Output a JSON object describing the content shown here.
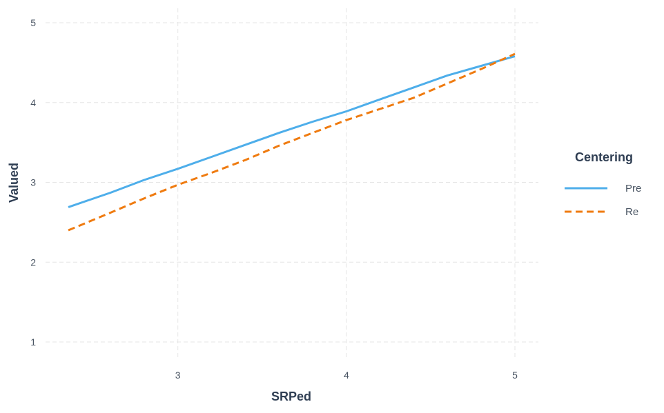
{
  "chart_data": {
    "type": "line",
    "title": "",
    "xlabel": "SRPed",
    "ylabel": "Valued",
    "xlim": [
      2.35,
      5.0
    ],
    "ylim": [
      1,
      5
    ],
    "x_ticks": [
      3,
      4,
      5
    ],
    "y_ticks": [
      1,
      2,
      3,
      4,
      5
    ],
    "grid": true,
    "legend": {
      "title": "Centering",
      "placement": "right"
    },
    "series": [
      {
        "name": "Pre",
        "color": "#4eaeea",
        "line_style": "solid",
        "x": [
          2.35,
          2.6,
          2.8,
          3.0,
          3.2,
          3.4,
          3.6,
          3.8,
          4.0,
          4.2,
          4.4,
          4.6,
          4.8,
          5.0
        ],
        "y": [
          2.69,
          2.87,
          3.03,
          3.17,
          3.32,
          3.47,
          3.62,
          3.76,
          3.89,
          4.04,
          4.19,
          4.34,
          4.46,
          4.58
        ]
      },
      {
        "name": "Re",
        "color": "#ef7b10",
        "line_style": "dashed",
        "x": [
          2.35,
          2.6,
          2.8,
          3.0,
          3.2,
          3.4,
          3.6,
          3.8,
          4.0,
          4.2,
          4.4,
          4.6,
          4.8,
          5.0
        ],
        "y": [
          2.4,
          2.62,
          2.8,
          2.97,
          3.12,
          3.28,
          3.46,
          3.62,
          3.78,
          3.92,
          4.06,
          4.24,
          4.42,
          4.61
        ]
      }
    ]
  }
}
